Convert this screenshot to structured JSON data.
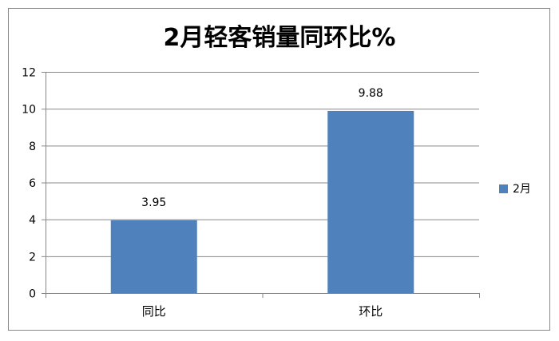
{
  "chart_data": {
    "type": "bar",
    "title": "2月轻客销量同环比%",
    "categories": [
      "同比",
      "环比"
    ],
    "series": [
      {
        "name": "2月",
        "values": [
          3.95,
          9.88
        ],
        "color": "#4F81BD"
      }
    ],
    "data_labels": [
      "3.95",
      "9.88"
    ],
    "ylim": [
      0,
      12
    ],
    "yticks": [
      0,
      2,
      4,
      6,
      8,
      10,
      12
    ],
    "grid": true,
    "legend": "right",
    "xlabel": "",
    "ylabel": ""
  }
}
